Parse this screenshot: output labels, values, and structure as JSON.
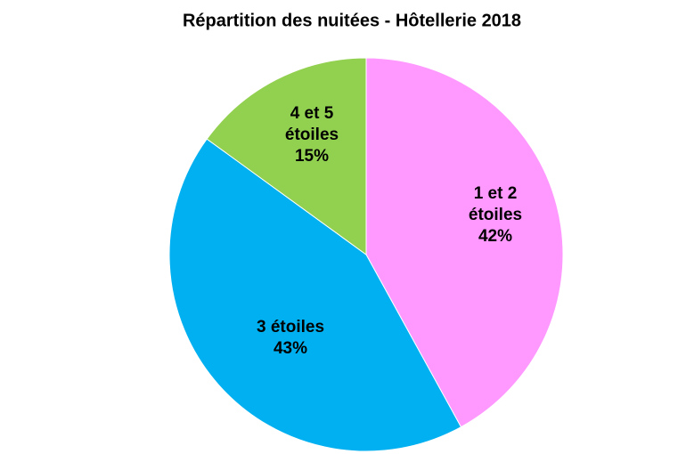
{
  "chart_data": {
    "type": "pie",
    "title": "Répartition des nuitées - Hôtellerie 2018",
    "categories": [
      "1 et 2 étoiles",
      "3 étoiles",
      "4 et 5 étoiles"
    ],
    "values": [
      42,
      43,
      15
    ],
    "value_labels": [
      "42%",
      "43%",
      "15%"
    ],
    "colors": [
      "#ff99ff",
      "#00b0f0",
      "#92d050"
    ]
  }
}
